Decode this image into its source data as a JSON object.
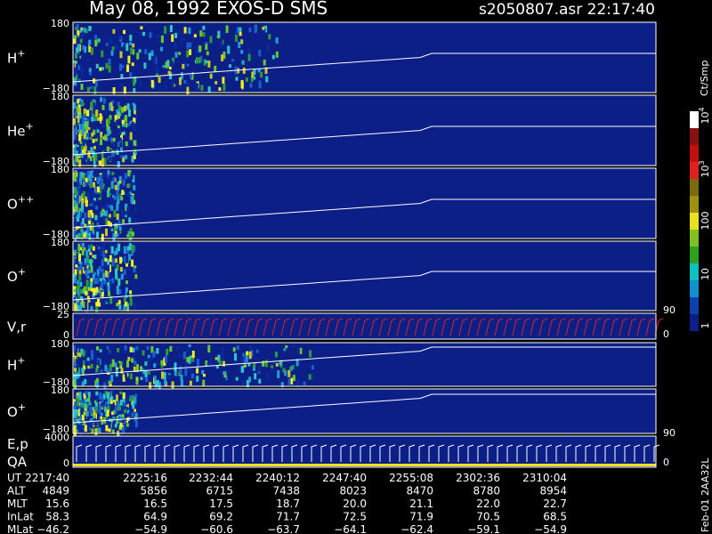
{
  "header": {
    "title": "May 08, 1992   EXOS-D SMS",
    "file": "s2050807.asr  22:17:40"
  },
  "panels": [
    {
      "label": "H",
      "sup": "+",
      "ticks": [
        "180",
        "−180"
      ]
    },
    {
      "label": "He",
      "sup": "+",
      "ticks": [
        "180",
        "−180"
      ]
    },
    {
      "label": "O",
      "sup": "++",
      "ticks": [
        "180",
        "−180"
      ]
    },
    {
      "label": "O",
      "sup": "+",
      "ticks": [
        "180",
        "−180"
      ]
    },
    {
      "label": "V,r",
      "ticks": [
        "25",
        "0"
      ],
      "right_ticks": [
        "90",
        "0"
      ]
    },
    {
      "label": "H",
      "sup": "+",
      "ticks": [
        "180",
        "−180"
      ]
    },
    {
      "label": "O",
      "sup": "+",
      "ticks": [
        "180",
        "−180"
      ]
    },
    {
      "label": "E,p",
      "label2": "QA",
      "ticks": [
        "4000",
        "0"
      ],
      "right_ticks": [
        "90",
        "0"
      ]
    }
  ],
  "colorbar": {
    "title": "Ct/Smp",
    "labels": [
      {
        "base": "10",
        "exp": "4"
      },
      {
        "base": "10",
        "exp": "3"
      },
      {
        "base": "100"
      },
      {
        "base": "10"
      },
      {
        "base": "1"
      }
    ]
  },
  "footer": {
    "rows": [
      {
        "label": "UT",
        "values": [
          "2217:40",
          "2225:16",
          "2232:44",
          "2240:12",
          "2247:40",
          "2255:08",
          "2302:36",
          "2310:04"
        ]
      },
      {
        "label": "ALT",
        "values": [
          "4849",
          "5856",
          "6715",
          "7438",
          "8023",
          "8470",
          "8780",
          "8954"
        ]
      },
      {
        "label": "MLT",
        "values": [
          "15.6",
          "16.5",
          "17.5",
          "18.7",
          "20.0",
          "21.1",
          "22.0",
          "22.7"
        ]
      },
      {
        "label": "InLat",
        "values": [
          "58.3",
          "64.9",
          "69.2",
          "71.7",
          "72.5",
          "71.9",
          "70.5",
          "68.5"
        ]
      },
      {
        "label": "MLat",
        "values": [
          "−46.2",
          "−54.9",
          "−60.6",
          "−63.7",
          "−64.1",
          "−62.4",
          "−59.1",
          "−54.9"
        ]
      }
    ]
  },
  "plot_id": "Feb-01 2AA32L"
}
